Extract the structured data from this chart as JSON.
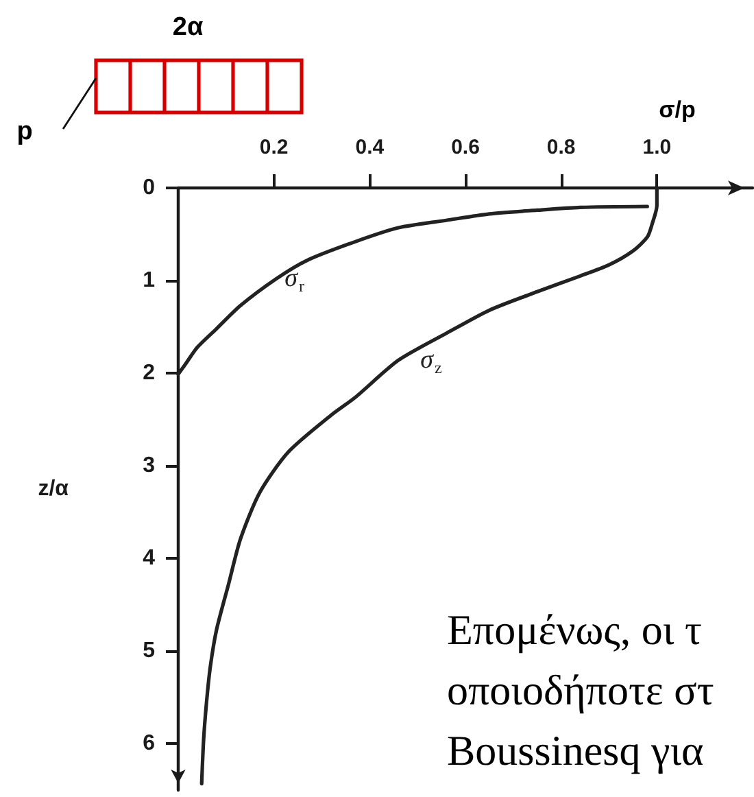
{
  "chart_data": {
    "type": "line",
    "xlabel": "σ/p",
    "ylabel": "z/α",
    "xlim": [
      0,
      1.2
    ],
    "xticks": [
      0.2,
      0.4,
      0.6,
      {
        "value": 0.8,
        "label": "0.8"
      },
      {
        "value": 1,
        "label": "1.0"
      }
    ],
    "ylim": [
      6.5,
      0
    ],
    "yticks": [
      0,
      1,
      2,
      3,
      4,
      5,
      6
    ],
    "marker": "none",
    "line_style": "solid",
    "series": [
      {
        "name": "σ$_{r}$",
        "color": "#222222",
        "x": [
          0.98,
          0.84,
          0.75,
          0.65,
          0.56,
          0.46,
          0.37,
          0.27,
          0.205,
          0.13,
          0.08,
          0.04,
          0.014,
          0
        ],
        "values": [
          0.2,
          0.21,
          0.24,
          0.28,
          0.35,
          0.43,
          0.58,
          0.78,
          0.98,
          1.27,
          1.52,
          1.72,
          1.91,
          2.01
        ]
      },
      {
        "name": "σ$_{z}$",
        "color": "#222222",
        "x": [
          1,
          1,
          0.99,
          0.98,
          0.95,
          0.9,
          0.84,
          0.75,
          0.65,
          0.56,
          0.46,
          0.37,
          0.32,
          0.23,
          0.17,
          0.13,
          0.105,
          0.08,
          0.067,
          0.059,
          0.053,
          0.049
        ],
        "values": [
          0,
          0.19,
          0.39,
          0.53,
          0.68,
          0.83,
          0.95,
          1.12,
          1.32,
          1.57,
          1.86,
          2.26,
          2.45,
          2.85,
          3.29,
          3.79,
          4.28,
          4.77,
          5.17,
          5.56,
          5.96,
          6.43
        ]
      }
    ],
    "annotations": [
      "2α",
      "p",
      "Επομένως, οι τ",
      "οποιοδήποτε στ",
      "Boussinesq για"
    ]
  }
}
